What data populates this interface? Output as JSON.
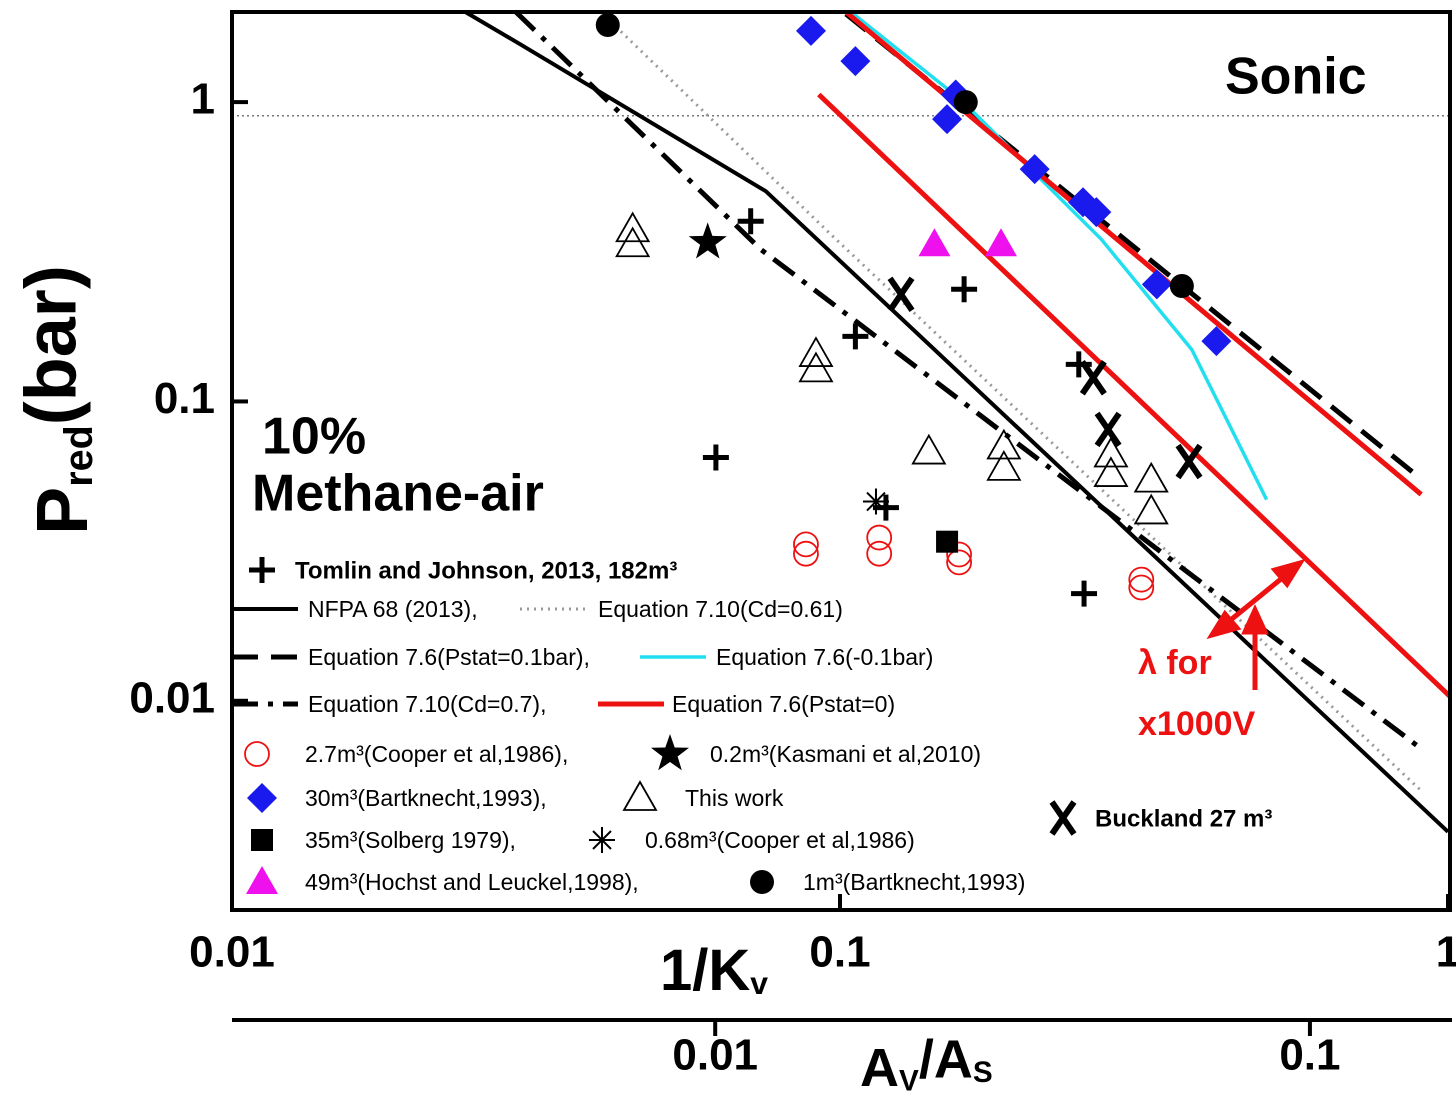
{
  "chart_data": {
    "type": "line",
    "log_x": true,
    "log_y": true,
    "y_label": [
      "P",
      "red",
      "(bar)"
    ],
    "x_label": [
      "1/K",
      "v"
    ],
    "x2_label": [
      "A",
      "V",
      "/A",
      "S"
    ],
    "xlim": [
      0.01,
      1
    ],
    "xticks": [
      0.01,
      0.1,
      1
    ],
    "ylim": [
      0.002,
      2
    ],
    "yticks": [
      0.01,
      0.1,
      1
    ],
    "x2lim": [
      0.00154,
      0.172
    ],
    "x2ticks": [
      0.01,
      0.1
    ],
    "hline": 0.9,
    "annotations": [
      "Sonic",
      "10%",
      "Methane-air",
      "λ for",
      "x1000V"
    ],
    "series": [
      {
        "name": "Tomlin and Johnson, 2013, 182m³",
        "kind": "plus",
        "color": "#000000",
        "x": [
          0.0713,
          0.106,
          0.16,
          0.0625,
          0.119,
          0.247,
          0.252
        ],
        "values": [
          0.4,
          0.165,
          0.237,
          0.065,
          0.0442,
          0.133,
          0.0228
        ]
      },
      {
        "name": "NFPA 68 (2013),",
        "kind": "solid",
        "color": "#000000",
        "x": [
          0.0242,
          0.0298,
          0.0755,
          1.0
        ],
        "values": [
          2.0,
          1.56,
          0.504,
          0.00365
        ]
      },
      {
        "name": "Equation 7.10(Cd=0.61)",
        "kind": "dotted",
        "color": "#999999",
        "x": [
          0.0404,
          0.0965,
          0.9
        ],
        "values": [
          2.0,
          0.362,
          0.00504
        ]
      },
      {
        "name": "Equation 7.6(Pstat=0.1bar),",
        "kind": "dashed",
        "color": "#000000",
        "x": [
          0.1023,
          0.906
        ],
        "values": [
          1.97,
          0.0548
        ]
      },
      {
        "name": "Equation 7.6(-0.1bar)",
        "kind": "solid",
        "color": "#22dfef",
        "x": [
          0.1042,
          0.158,
          0.269,
          0.379,
          0.416,
          0.503
        ],
        "values": [
          2.0,
          1.02,
          0.348,
          0.149,
          0.102,
          0.047
        ]
      },
      {
        "name": "Equation 7.10(Cd=0.7),",
        "kind": "dashdot",
        "color": "#000000",
        "x": [
          0.0293,
          0.0741,
          0.899
        ],
        "values": [
          2.0,
          0.322,
          0.00697
        ]
      },
      {
        "name": "Equation 7.6(Pstat=0)",
        "kind": "thick",
        "color": "#ee1111",
        "x": [
          0.1023,
          0.9036
        ],
        "values": [
          2.0,
          0.0489
        ]
      },
      {
        "kind": "thick",
        "color": "#ee1111",
        "x": [
          0.0923,
          1.02
        ],
        "values": [
          1.06,
          0.0101
        ]
      },
      {
        "name": "2.7m³(Cooper et al,1986),",
        "kind": "circle-open",
        "color": "#ee1111",
        "x": [
          0.0879,
          0.0879,
          0.116,
          0.116,
          0.157,
          0.157,
          0.313,
          0.313
        ],
        "values": [
          0.0333,
          0.031,
          0.0351,
          0.031,
          0.0308,
          0.029,
          0.0254,
          0.0239
        ]
      },
      {
        "name": "0.2m³(Kasmani et al,2010)",
        "kind": "star",
        "color": "#000000",
        "x": [
          0.0606
        ],
        "values": [
          0.34
        ]
      },
      {
        "name": "30m³(Bartknecht,1993),",
        "kind": "diamond",
        "color": "#1a1aee",
        "x": [
          0.0896,
          0.106,
          0.15,
          0.155,
          0.209,
          0.251,
          0.264,
          0.332,
          0.416
        ],
        "values": [
          1.73,
          1.37,
          0.877,
          1.06,
          0.597,
          0.463,
          0.429,
          0.246,
          0.159
        ]
      },
      {
        "name": "This work",
        "kind": "triangle-open",
        "color": "#000000",
        "x": [
          0.0456,
          0.0456,
          0.0913,
          0.0913,
          0.14,
          0.186,
          0.186,
          0.279,
          0.279,
          0.325,
          0.325
        ],
        "values": [
          0.376,
          0.335,
          0.144,
          0.128,
          0.068,
          0.0707,
          0.06,
          0.0665,
          0.0572,
          0.0548,
          0.0429
        ]
      },
      {
        "name": "35m³(Solberg 1979),",
        "kind": "square",
        "color": "#000000",
        "x": [
          0.15
        ],
        "values": [
          0.034
        ]
      },
      {
        "name": "0.68m³(Cooper et al,1986)",
        "kind": "asterisk",
        "color": "#000000",
        "x": [
          0.1146
        ],
        "values": [
          0.0463
        ]
      },
      {
        "name": "49m³(Hochst and Leuckel,1998),",
        "kind": "triangle",
        "color": "#ee11ee",
        "x": [
          0.143,
          0.184
        ],
        "values": [
          0.335,
          0.335
        ]
      },
      {
        "name": "1m³(Bartknecht,1993)",
        "kind": "circle",
        "color": "#000000",
        "x": [
          0.0415,
          0.161,
          0.365
        ],
        "values": [
          1.81,
          1.0,
          0.243
        ]
      },
      {
        "name": "Buckland 27 m³",
        "kind": "x",
        "color": "#000000",
        "x": [
          0.126,
          0.261,
          0.276,
          0.375
        ],
        "values": [
          0.228,
          0.12,
          0.0806,
          0.063
        ]
      }
    ]
  }
}
